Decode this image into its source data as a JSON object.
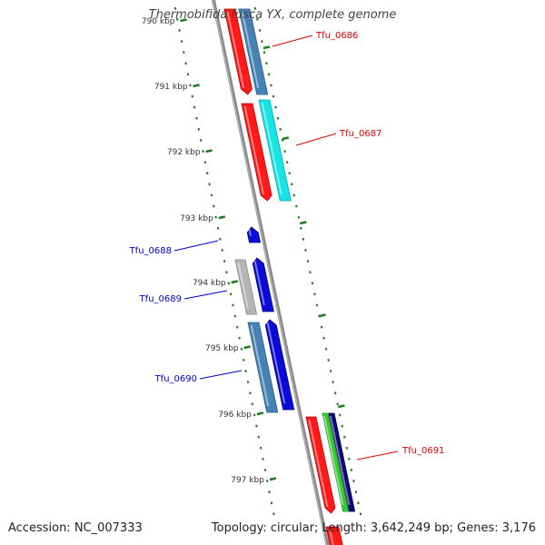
{
  "title": "Thermobifida fusca YX, complete genome",
  "footer": {
    "accession": "Accession: NC_007333",
    "summary": "Topology: circular; Length: 3,642,249 bp; Genes: 3,176"
  },
  "colors": {
    "backbone": "#8c8c8c",
    "tick": "#207a20",
    "red_gene": "#ff1a1a",
    "blue_gene": "#0b0bd9",
    "steelblue_gene": "#4682b4",
    "cyan_gene": "#19e3e3",
    "gray_gene": "#b4b4b4",
    "green_gene": "#33cc33",
    "navy_gene": "#0a0a78",
    "label_red": "#e00000",
    "label_blue": "#0000cc"
  },
  "tick_labels": [
    "790 kbp",
    "791 kbp",
    "792 kbp",
    "793 kbp",
    "794 kbp",
    "795 kbp",
    "796 kbp",
    "797 kbp"
  ],
  "genes": [
    {
      "label": "Tfu_0686",
      "label_color": "label_red"
    },
    {
      "label": "Tfu_0687",
      "label_color": "label_red"
    },
    {
      "label": "Tfu_0688",
      "label_color": "label_blue"
    },
    {
      "label": "Tfu_0689",
      "label_color": "label_blue"
    },
    {
      "label": "Tfu_0690",
      "label_color": "label_blue"
    },
    {
      "label": "Tfu_0691",
      "label_color": "label_red"
    }
  ]
}
